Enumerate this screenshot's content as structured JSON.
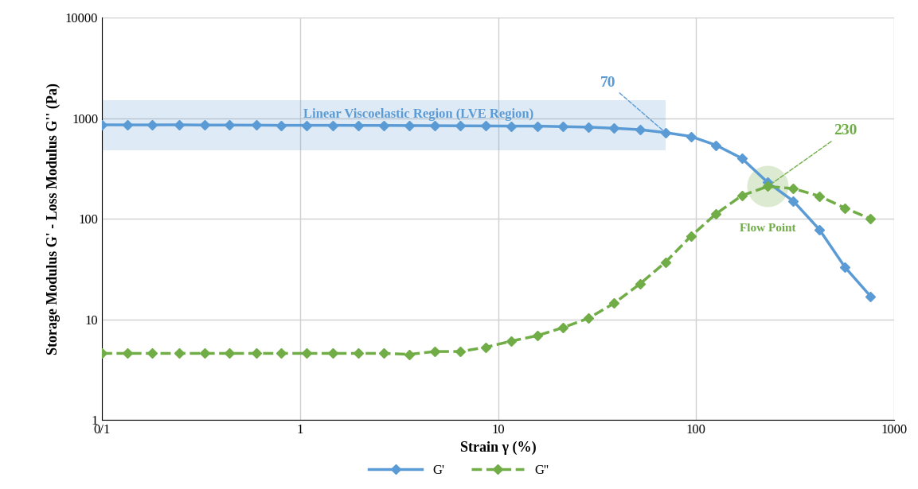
{
  "chart_data": {
    "type": "line",
    "x_label": "Strain γ (%)",
    "y_label": "Storage Modulus G' - Loss Modulus G'' (Pa)",
    "x": [
      0.1,
      0.135,
      0.18,
      0.245,
      0.33,
      0.44,
      0.6,
      0.8,
      1.08,
      1.46,
      1.97,
      2.65,
      3.57,
      4.8,
      6.47,
      8.7,
      11.7,
      15.8,
      21.3,
      28.7,
      38.6,
      52,
      70,
      94,
      126,
      170,
      230,
      310,
      420,
      565,
      760
    ],
    "series": [
      {
        "name": "G'",
        "color": "#5b9bd5",
        "marker": "diamond",
        "line_style": "solid",
        "values": [
          860,
          858,
          858,
          860,
          855,
          855,
          853,
          850,
          850,
          850,
          848,
          848,
          845,
          843,
          840,
          838,
          835,
          835,
          825,
          815,
          795,
          770,
          720,
          660,
          540,
          400,
          230,
          150,
          78,
          33,
          17
        ]
      },
      {
        "name": "G''",
        "color": "#70ad47",
        "marker": "diamond",
        "line_style": "dashed",
        "values": [
          4.6,
          4.6,
          4.6,
          4.6,
          4.6,
          4.6,
          4.6,
          4.6,
          4.6,
          4.6,
          4.6,
          4.6,
          4.5,
          4.8,
          4.8,
          5.3,
          6.1,
          6.9,
          8.3,
          10.3,
          14.5,
          22.5,
          37,
          67,
          112,
          170,
          210,
          200,
          168,
          128,
          100
        ]
      }
    ],
    "annotations": [
      {
        "text": "70",
        "x": 70,
        "y": 720,
        "color": "#5b9bd5"
      },
      {
        "text": "230",
        "x": 230,
        "y": 210,
        "color": "#70ad47"
      },
      {
        "text": "Linear Viscoelastic Region (LVE Region)",
        "region": [
          0.1,
          70
        ],
        "color": "#5b9bd5"
      },
      {
        "text": "Flow Point",
        "x": 230,
        "y": 210,
        "color": "#70ad47"
      }
    ],
    "log": true,
    "xlim": [
      0.1,
      1000
    ],
    "ylim": [
      1,
      10000
    ],
    "xticks": [
      {
        "value": 0.1,
        "label": "0/1"
      },
      1,
      10,
      100,
      1000
    ],
    "yticks": [
      1,
      10,
      100,
      1000,
      10000
    ],
    "grid": true,
    "legend": "bottom"
  }
}
